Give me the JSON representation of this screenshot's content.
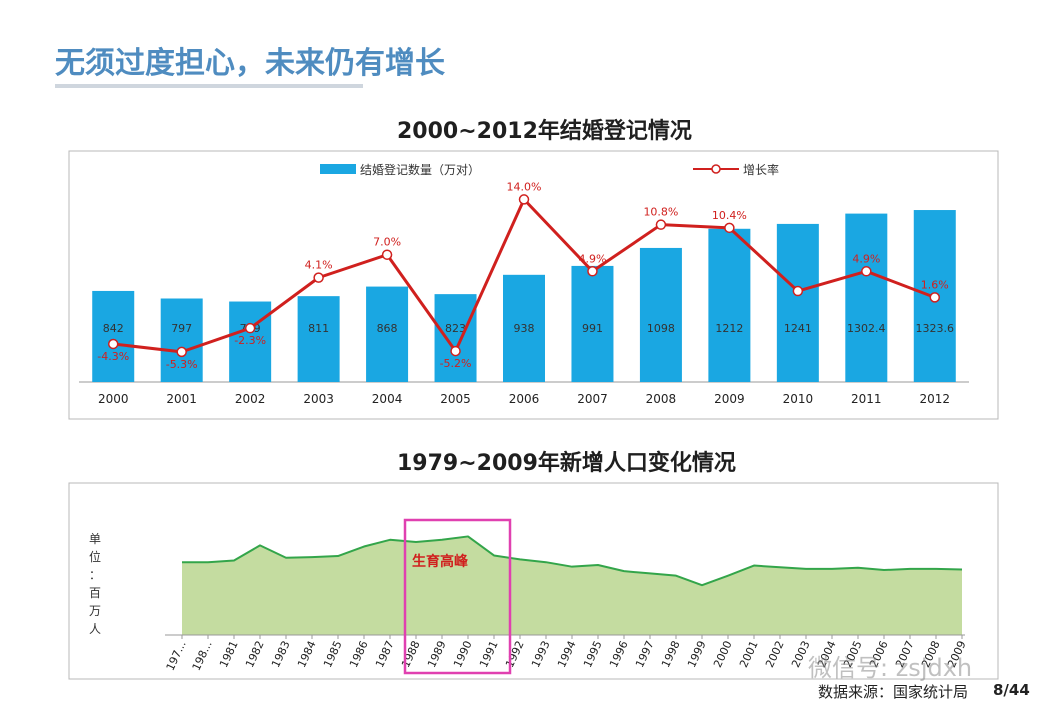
{
  "slide": {
    "title": "无须过度担心，未来仍有增长",
    "page_number": "8/44",
    "source": "数据来源：国家统计局",
    "watermark": "微信号: zsjdxh"
  },
  "colors": {
    "title": "#4f8cc0",
    "bar": "#1aa7e2",
    "rate_line": "#d0201e",
    "area_fill": "#c4dca0",
    "area_line": "#33a54a",
    "highlight": "#e040b0"
  },
  "chart_data": [
    {
      "type": "bar",
      "title": "2000~2012年结婚登记情况",
      "categories": [
        "2000",
        "2001",
        "2002",
        "2003",
        "2004",
        "2005",
        "2006",
        "2007",
        "2008",
        "2009",
        "2010",
        "2011",
        "2012"
      ],
      "series": [
        {
          "name": "结婚登记数量（万对）",
          "kind": "bar",
          "values": [
            842,
            797,
            779,
            811,
            868,
            823,
            938,
            991,
            1098,
            1212,
            1241,
            1302.4,
            1323.6
          ],
          "labels": [
            "842",
            "797",
            "779",
            "811",
            "868",
            "823",
            "938",
            "991",
            "1098",
            "1212",
            "1241",
            "1302.4",
            "1323.6"
          ]
        },
        {
          "name": "增长率",
          "kind": "line",
          "values": [
            -4.3,
            -5.3,
            -2.3,
            4.1,
            7.0,
            -5.2,
            14.0,
            4.9,
            10.8,
            10.4,
            2.4,
            4.9,
            1.6
          ],
          "labels": [
            "-4.3%",
            "-5.3%",
            "-2.3%",
            "4.1%",
            "7.0%",
            "-5.2%",
            "14.0%",
            "4.9%",
            "10.8%",
            "10.4%",
            "",
            "4.9%",
            "1.6%"
          ]
        }
      ],
      "legend_position": "top"
    },
    {
      "type": "area",
      "title": "1979~2009年新增人口变化情况",
      "ylabel": "单位：百万人",
      "categories": [
        "1979",
        "1980",
        "1981",
        "1982",
        "1983",
        "1984",
        "1985",
        "1986",
        "1987",
        "1988",
        "1989",
        "1990",
        "1991",
        "1992",
        "1993",
        "1994",
        "1995",
        "1996",
        "1997",
        "1998",
        "1999",
        "2000",
        "2001",
        "2002",
        "2003",
        "2004",
        "2005",
        "2006",
        "2007",
        "2008",
        "2009"
      ],
      "category_labels": [
        "197...",
        "198...",
        "1981",
        "1982",
        "1983",
        "1984",
        "1985",
        "1986",
        "1987",
        "1988",
        "1989",
        "1990",
        "1991",
        "1992",
        "1993",
        "1994",
        "1995",
        "1996",
        "1997",
        "1998",
        "1999",
        "2000",
        "2001",
        "2002",
        "2003",
        "2004",
        "2005",
        "2006",
        "2007",
        "2008",
        "2009"
      ],
      "values": [
        13.0,
        13.0,
        13.3,
        16.0,
        13.8,
        13.9,
        14.1,
        15.8,
        17.0,
        16.6,
        17.0,
        17.6,
        14.2,
        13.5,
        13.0,
        12.2,
        12.5,
        11.4,
        11.0,
        10.6,
        8.9,
        10.6,
        12.4,
        12.1,
        11.8,
        11.8,
        12.0,
        11.6,
        11.8,
        11.8,
        11.7
      ],
      "ylim": [
        0,
        24
      ],
      "annotation": {
        "label": "生育高峰",
        "from": "1988",
        "to": "1991"
      }
    }
  ]
}
